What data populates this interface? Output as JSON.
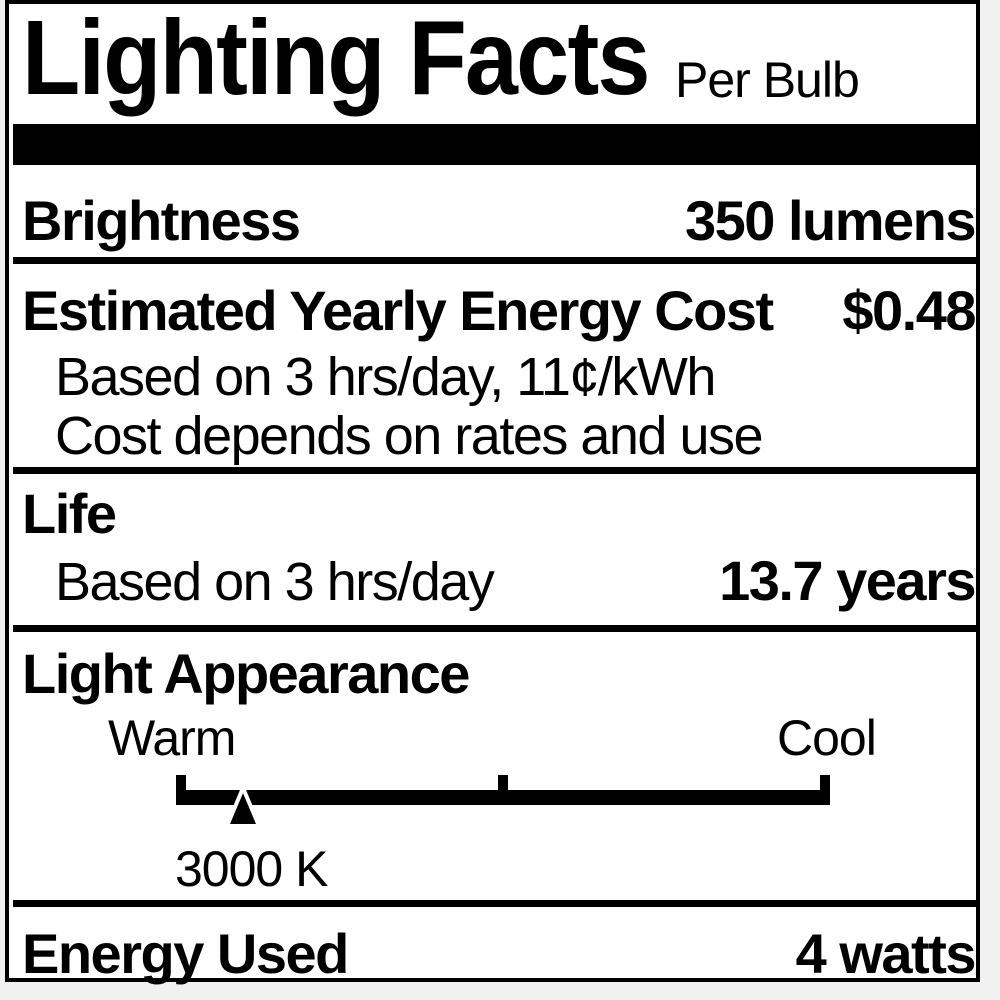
{
  "colors": {
    "ink": "#000000",
    "paper": "#ffffff",
    "page_background": "#f1f1f1"
  },
  "header": {
    "title": "Lighting Facts",
    "per_bulb": "Per Bulb"
  },
  "brightness": {
    "label": "Brightness",
    "value": "350 lumens"
  },
  "energy_cost": {
    "label": "Estimated Yearly Energy Cost",
    "value": "$0.48",
    "note_basis": "Based on 3 hrs/day, 11¢/kWh",
    "note_rates": "Cost depends on rates and use"
  },
  "life": {
    "label": "Life",
    "basis": "Based on 3 hrs/day",
    "value": "13.7 years"
  },
  "light_appearance": {
    "label": "Light Appearance",
    "warm_label": "Warm",
    "cool_label": "Cool",
    "kelvin_value": "3000 K",
    "marker_position_pct": 10.2
  },
  "energy_used": {
    "label": "Energy Used",
    "value": "4 watts"
  }
}
